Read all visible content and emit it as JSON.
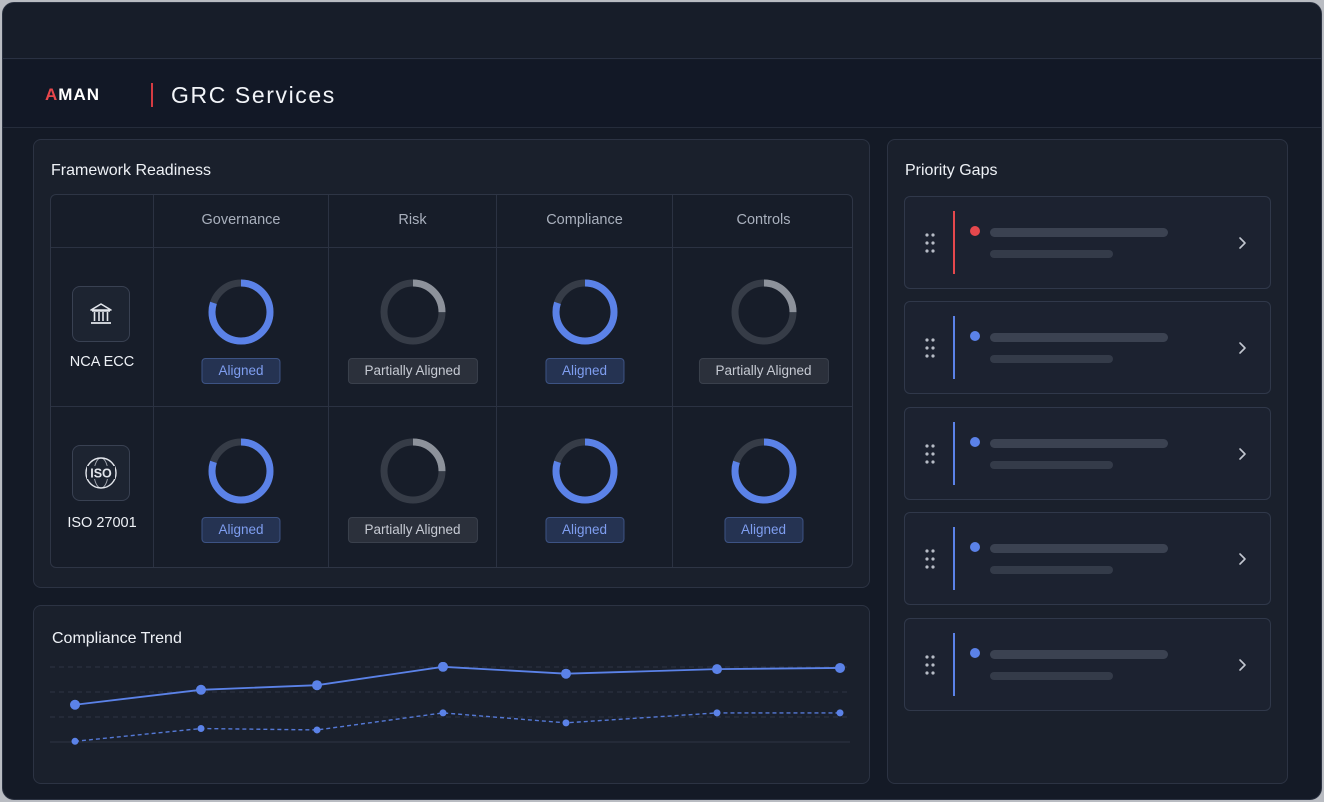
{
  "header": {
    "logo_text": "MAN",
    "logo_accent": "A",
    "title": "GRC Services"
  },
  "framework_readiness": {
    "title": "Framework Readiness",
    "columns": [
      "Governance",
      "Risk",
      "Compliance",
      "Controls"
    ],
    "rows": [
      {
        "name": "NCA ECC",
        "icon": "bank-icon",
        "cells": [
          {
            "status": "Aligned",
            "progress": 0.8
          },
          {
            "status": "Partially Aligned",
            "progress": 0.25
          },
          {
            "status": "Aligned",
            "progress": 0.8
          },
          {
            "status": "Partially Aligned",
            "progress": 0.25
          }
        ]
      },
      {
        "name": "ISO 27001",
        "icon": "iso-globe-icon",
        "icon_text": "ISO",
        "cells": [
          {
            "status": "Aligned",
            "progress": 0.8
          },
          {
            "status": "Partially Aligned",
            "progress": 0.25
          },
          {
            "status": "Aligned",
            "progress": 0.8
          },
          {
            "status": "Aligned",
            "progress": 0.8
          }
        ]
      }
    ]
  },
  "compliance_trend": {
    "title": "Compliance Trend",
    "chart_data": {
      "type": "line",
      "grid": true,
      "ylim": [
        0,
        100
      ],
      "series": [
        {
          "style": "solid",
          "values": [
            55,
            68,
            72,
            88,
            82,
            86,
            87
          ]
        },
        {
          "style": "dashed",
          "values": [
            35,
            44,
            43,
            55,
            48,
            55,
            55
          ]
        }
      ]
    }
  },
  "priority_gaps": {
    "title": "Priority Gaps",
    "items": [
      {
        "severity": "high",
        "color": "#e5484d"
      },
      {
        "severity": "normal",
        "color": "#5b82e8"
      },
      {
        "severity": "normal",
        "color": "#5b82e8"
      },
      {
        "severity": "normal",
        "color": "#5b82e8"
      },
      {
        "severity": "normal",
        "color": "#5b82e8"
      }
    ]
  },
  "colors": {
    "aligned_ring": "#5b82e8",
    "partial_ring": "#8d929b",
    "ring_track": "#363c47",
    "accent_red": "#e5484d"
  }
}
